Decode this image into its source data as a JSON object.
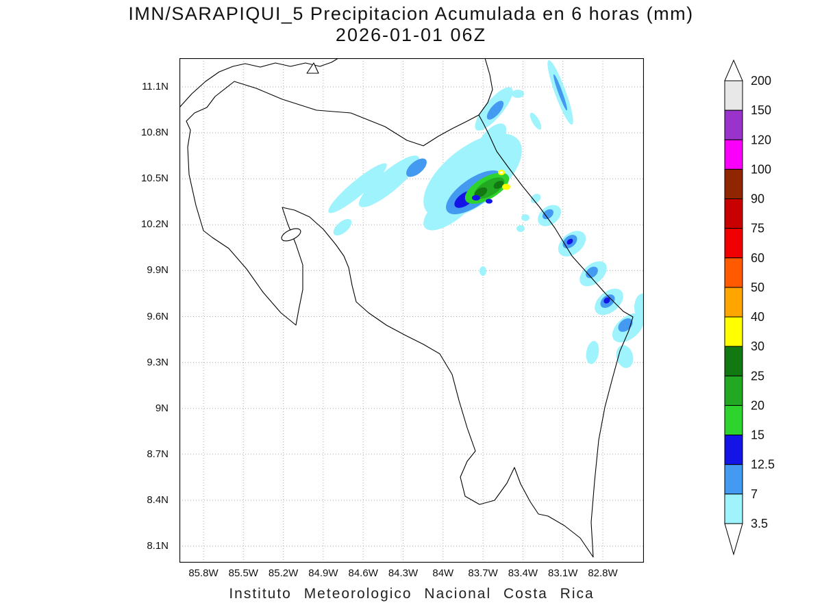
{
  "title": {
    "line1": "IMN/SARAPIQUI_5 Precipitacion Acumulada en 6 horas (mm)",
    "line2": "2026-01-01 06Z"
  },
  "caption": "Instituto Meteorologico Nacional Costa Rica",
  "axes": {
    "y_ticks": [
      "11.1N",
      "10.8N",
      "10.5N",
      "10.2N",
      "9.9N",
      "9.6N",
      "9.3N",
      "9N",
      "8.7N",
      "8.4N",
      "8.1N"
    ],
    "x_ticks": [
      "85.8W",
      "85.5W",
      "85.2W",
      "84.9W",
      "84.6W",
      "84.3W",
      "84W",
      "83.7W",
      "83.4W",
      "83.1W",
      "82.8W"
    ]
  },
  "colorbar": {
    "labels_top_to_bottom": [
      "200",
      "150",
      "120",
      "100",
      "90",
      "75",
      "60",
      "50",
      "40",
      "30",
      "25",
      "20",
      "15",
      "12.5",
      "7",
      "3.5"
    ],
    "segment_colors_top_to_bottom": [
      "#ffffff",
      "#e8e8e8",
      "#9933cc",
      "#fa00fa",
      "#8f2600",
      "#c80000",
      "#f00000",
      "#ff5a00",
      "#ffa500",
      "#ffff00",
      "#127812",
      "#23a823",
      "#2ed32e",
      "#1414e6",
      "#4499f0",
      "#9ef3fd",
      "#ffffff"
    ]
  },
  "map_content": {
    "country_outline": "Costa Rica coastline and borders",
    "shading_levels_present_mm": [
      "3.5",
      "7",
      "12.5",
      "15",
      "20",
      "25",
      "30"
    ],
    "pattern": "NE-SW oriented rain streaks over northern Costa Rica with a green/yellow core near 10.4N 83.8W and a chain of light-blue cells along the Caribbean coast toward the southeast"
  },
  "palette": {
    "cyan": "#9ef3fd",
    "blue": "#4499f0",
    "dark_blue": "#1414e6",
    "green_light": "#2ed32e",
    "green_mid": "#23a823",
    "green_dark": "#127812",
    "yellow": "#ffff00",
    "grid": "#aaaaaa",
    "line": "#000000"
  }
}
